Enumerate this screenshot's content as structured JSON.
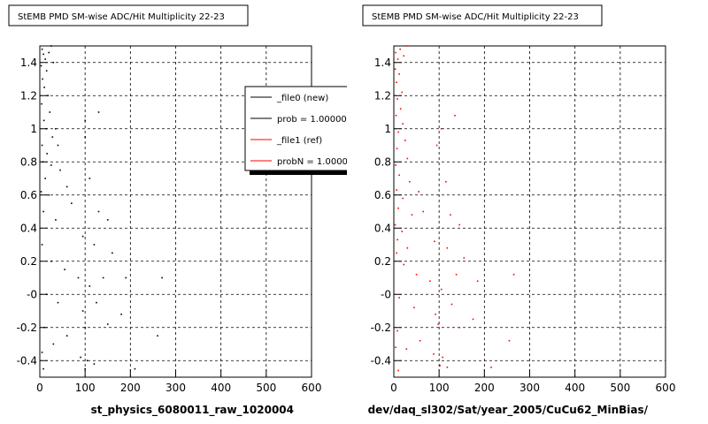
{
  "chart_data": [
    {
      "type": "scatter",
      "title": "StEMB PMD SM-wise ADC/Hit Multiplicity 22-23",
      "x_label": "st_physics_6080011_raw_1020004",
      "xlim": [
        0,
        600
      ],
      "xticks": [
        0,
        100,
        200,
        300,
        400,
        500,
        600
      ],
      "ylim": [
        -0.5,
        1.5
      ],
      "yticks": [
        -0.4,
        -0.2,
        {
          "value": 0,
          "label": "-0"
        },
        0.2,
        0.4,
        0.6,
        0.8,
        1,
        1.2,
        1.4
      ],
      "grid": true,
      "legend": [
        {
          "label": "_file0 (new)",
          "color": "#000000"
        },
        {
          "label": "prob = 1.000000",
          "color": "#000000"
        },
        {
          "label": "_file1 (ref)",
          "color": "#ff0000"
        },
        {
          "label": "probN = 1.000000",
          "color": "#ff0000"
        }
      ],
      "series": [
        {
          "color": "#000000",
          "x": [
            5,
            8,
            12,
            20,
            25,
            3,
            15,
            30,
            6,
            10,
            18,
            4,
            22,
            9,
            14,
            28,
            35,
            5,
            16,
            40,
            7,
            25,
            12,
            45,
            3,
            20,
            60,
            8,
            35,
            70,
            100,
            100,
            130,
            110,
            130,
            150,
            95,
            120,
            160,
            5,
            25,
            55,
            85,
            110,
            140,
            190,
            270,
            15,
            40,
            95,
            125,
            180,
            10,
            60,
            100,
            150,
            260,
            5,
            30,
            90,
            105,
            120,
            8,
            100,
            210
          ],
          "y": [
            1.48,
            1.45,
            1.42,
            1.46,
            1.5,
            1.38,
            1.35,
            1.4,
            1.3,
            1.25,
            1.2,
            1.15,
            1.1,
            1.05,
            1.0,
            0.95,
            1.0,
            0.9,
            0.85,
            0.9,
            0.8,
            0.78,
            0.7,
            0.75,
            0.62,
            0.6,
            0.65,
            0.5,
            0.45,
            0.55,
            0.95,
            1.05,
            1.1,
            0.7,
            0.5,
            0.45,
            0.35,
            0.3,
            0.25,
            0.3,
            0.2,
            0.15,
            0.1,
            0.05,
            0.1,
            0.1,
            0.1,
            0.0,
            -0.05,
            -0.1,
            -0.05,
            -0.12,
            -0.2,
            -0.25,
            -0.2,
            -0.18,
            -0.25,
            -0.35,
            -0.3,
            -0.38,
            -0.4,
            -0.42,
            -0.45,
            -0.45,
            -0.45
          ]
        }
      ]
    },
    {
      "type": "scatter",
      "title": "StEMB PMD SM-wise ADC/Hit Multiplicity 22-23",
      "x_label": "dev/daq_sl302/Sat/year_2005/CuCu62_MinBias/",
      "xlim": [
        0,
        600
      ],
      "xticks": [
        0,
        100,
        200,
        300,
        400,
        500,
        600
      ],
      "ylim": [
        -0.5,
        1.5
      ],
      "yticks": [
        -0.4,
        -0.2,
        {
          "value": 0,
          "label": "-0"
        },
        0.2,
        0.4,
        0.6,
        0.8,
        1,
        1.2,
        1.4
      ],
      "grid": true,
      "series": [
        {
          "color": "#ff0000",
          "x": [
            4,
            9,
            14,
            22,
            28,
            3,
            12,
            6,
            18,
            8,
            15,
            5,
            20,
            10,
            25,
            7,
            30,
            4,
            12,
            35,
            6,
            20,
            10,
            40,
            3,
            18,
            55,
            8,
            30,
            65,
            95,
            105,
            135,
            115,
            125,
            145,
            90,
            118,
            155,
            6,
            22,
            50,
            80,
            105,
            138,
            185,
            265,
            12,
            45,
            92,
            128,
            175,
            8,
            58,
            98,
            145,
            255,
            4,
            28,
            88,
            108,
            118,
            10,
            102,
            215
          ],
          "y": [
            1.46,
            1.42,
            1.48,
            1.44,
            1.5,
            1.36,
            1.33,
            1.28,
            1.22,
            1.18,
            1.12,
            1.08,
            1.03,
            0.98,
            0.93,
            0.88,
            0.82,
            0.78,
            0.72,
            0.68,
            0.63,
            0.58,
            0.52,
            0.48,
            0.42,
            0.38,
            0.62,
            0.33,
            0.28,
            0.5,
            0.9,
            1.0,
            1.08,
            0.68,
            0.48,
            0.42,
            0.32,
            0.28,
            0.22,
            0.25,
            0.18,
            0.12,
            0.08,
            0.03,
            0.12,
            0.08,
            0.12,
            -0.02,
            -0.08,
            -0.12,
            -0.06,
            -0.15,
            -0.22,
            -0.28,
            -0.18,
            -0.2,
            -0.28,
            -0.32,
            -0.33,
            -0.36,
            -0.38,
            -0.44,
            -0.46,
            -0.43,
            -0.44
          ]
        }
      ]
    }
  ]
}
